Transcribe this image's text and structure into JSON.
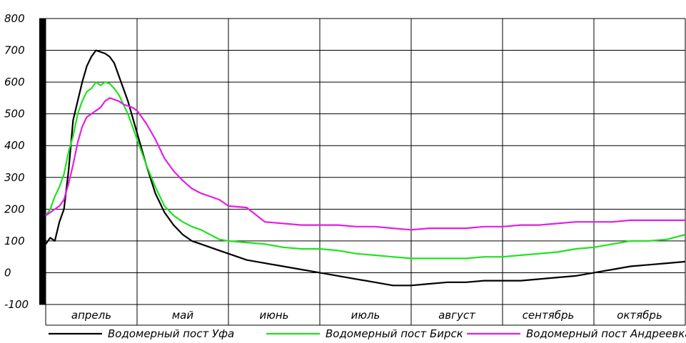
{
  "chart_data": {
    "type": "line",
    "ylim": [
      -100,
      800
    ],
    "yticks": [
      800,
      700,
      600,
      500,
      400,
      300,
      200,
      100,
      0,
      -100
    ],
    "months": [
      "апрель",
      "май",
      "июнь",
      "июль",
      "август",
      "сентябрь",
      "октябрь"
    ],
    "x": [
      0,
      0.05,
      0.1,
      0.15,
      0.2,
      0.25,
      0.3,
      0.35,
      0.4,
      0.45,
      0.5,
      0.55,
      0.6,
      0.65,
      0.7,
      0.75,
      0.8,
      0.85,
      0.9,
      0.95,
      1.0,
      1.1,
      1.2,
      1.3,
      1.4,
      1.5,
      1.6,
      1.7,
      1.8,
      1.9,
      2.0,
      2.2,
      2.4,
      2.6,
      2.8,
      3.0,
      3.2,
      3.4,
      3.6,
      3.8,
      4.0,
      4.2,
      4.4,
      4.6,
      4.8,
      5.0,
      5.2,
      5.4,
      5.6,
      5.8,
      6.0,
      6.2,
      6.4,
      6.6,
      6.8,
      7.0
    ],
    "series": [
      {
        "name": "Водомерный пост Уфа",
        "color": "#000000",
        "values": [
          90,
          110,
          100,
          160,
          200,
          320,
          480,
          540,
          600,
          650,
          680,
          700,
          695,
          690,
          680,
          660,
          620,
          580,
          540,
          490,
          440,
          340,
          250,
          190,
          150,
          120,
          100,
          90,
          80,
          70,
          60,
          40,
          30,
          20,
          10,
          0,
          -10,
          -20,
          -30,
          -40,
          -40,
          -35,
          -30,
          -30,
          -25,
          -25,
          -25,
          -20,
          -15,
          -10,
          0,
          10,
          20,
          25,
          30,
          35
        ]
      },
      {
        "name": "Водомерный пост Бирск",
        "color": "#1fe21f",
        "values": [
          180,
          200,
          240,
          270,
          310,
          380,
          430,
          500,
          540,
          570,
          580,
          600,
          590,
          600,
          595,
          580,
          560,
          530,
          500,
          460,
          420,
          340,
          270,
          210,
          180,
          160,
          145,
          135,
          120,
          105,
          100,
          95,
          90,
          80,
          75,
          75,
          70,
          60,
          55,
          50,
          45,
          45,
          45,
          45,
          50,
          50,
          55,
          60,
          65,
          75,
          80,
          90,
          100,
          100,
          105,
          120
        ]
      },
      {
        "name": "Водомерный пост Андреевка",
        "color": "#e21fe2",
        "values": [
          180,
          190,
          200,
          210,
          230,
          280,
          340,
          410,
          460,
          490,
          500,
          510,
          520,
          540,
          550,
          545,
          540,
          530,
          525,
          520,
          510,
          470,
          420,
          360,
          320,
          290,
          265,
          250,
          240,
          230,
          210,
          205,
          160,
          155,
          150,
          150,
          150,
          145,
          145,
          140,
          135,
          140,
          140,
          140,
          145,
          145,
          150,
          150,
          155,
          160,
          160,
          160,
          165,
          165,
          165,
          165
        ]
      }
    ]
  }
}
